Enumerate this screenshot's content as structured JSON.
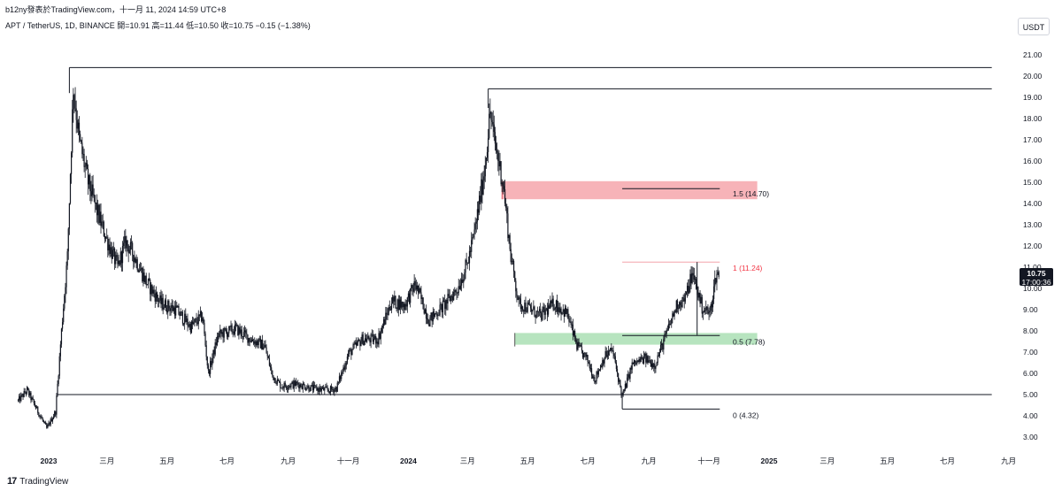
{
  "header": {
    "publisher": "b12ny發表於TradingView.com，十一月 11, 2024 14:59 UTC+8",
    "symbol_line": "APT / TetherUS, 1D, BINANCE  開=10.91  高=11.44  低=10.50  收=10.75  −0.15 (−1.38%)"
  },
  "currency_button": "USDT",
  "footer": {
    "brand_icon": "17",
    "brand": "TradingView"
  },
  "last_price": {
    "value": "10.75",
    "countdown": "17:00:36"
  },
  "colors": {
    "candle": "#131722",
    "red_zone": "#f7b3b8",
    "green_zone": "#b7e4bf",
    "fib_red": "#f23645",
    "line": "#131722"
  },
  "chart_data": {
    "type": "candlestick",
    "ylim": [
      2.6,
      22.0
    ],
    "y_ticks": [
      "3.00",
      "4.00",
      "5.00",
      "6.00",
      "7.00",
      "8.00",
      "9.00",
      "10.00",
      "11.00",
      "12.00",
      "13.00",
      "14.00",
      "15.00",
      "16.00",
      "17.00",
      "18.00",
      "19.00",
      "20.00",
      "21.00"
    ],
    "x_ticks": [
      {
        "label": "2023",
        "date": "2023-01-01",
        "bold": true
      },
      {
        "label": "三月",
        "date": "2023-03-01"
      },
      {
        "label": "五月",
        "date": "2023-05-01"
      },
      {
        "label": "七月",
        "date": "2023-07-01"
      },
      {
        "label": "九月",
        "date": "2023-09-01"
      },
      {
        "label": "十一月",
        "date": "2023-11-01"
      },
      {
        "label": "2024",
        "date": "2024-01-01",
        "bold": true
      },
      {
        "label": "三月",
        "date": "2024-03-01"
      },
      {
        "label": "五月",
        "date": "2024-05-01"
      },
      {
        "label": "七月",
        "date": "2024-07-01"
      },
      {
        "label": "九月",
        "date": "2024-09-01"
      },
      {
        "label": "十一月",
        "date": "2024-11-01"
      },
      {
        "label": "2025",
        "date": "2025-01-01",
        "bold": true
      },
      {
        "label": "三月",
        "date": "2025-03-01"
      },
      {
        "label": "五月",
        "date": "2025-05-01"
      },
      {
        "label": "七月",
        "date": "2025-07-01"
      },
      {
        "label": "九月",
        "date": "2025-09-01"
      }
    ],
    "path_keypoints": [
      [
        "2022-12-01",
        4.7
      ],
      [
        "2022-12-10",
        5.2
      ],
      [
        "2022-12-20",
        4.3
      ],
      [
        "2022-12-30",
        3.4
      ],
      [
        "2023-01-08",
        4.2
      ],
      [
        "2023-01-14",
        8.0
      ],
      [
        "2023-01-20",
        11.5
      ],
      [
        "2023-01-26",
        19.5
      ],
      [
        "2023-02-01",
        17.0
      ],
      [
        "2023-02-10",
        15.0
      ],
      [
        "2023-02-20",
        13.5
      ],
      [
        "2023-03-01",
        12.3
      ],
      [
        "2023-03-12",
        11.0
      ],
      [
        "2023-03-20",
        12.2
      ],
      [
        "2023-03-28",
        11.6
      ],
      [
        "2023-04-10",
        10.3
      ],
      [
        "2023-04-25",
        9.3
      ],
      [
        "2023-05-10",
        9.0
      ],
      [
        "2023-05-25",
        8.2
      ],
      [
        "2023-06-06",
        8.7
      ],
      [
        "2023-06-12",
        6.0
      ],
      [
        "2023-06-22",
        7.8
      ],
      [
        "2023-07-10",
        8.1
      ],
      [
        "2023-07-25",
        7.6
      ],
      [
        "2023-08-08",
        7.3
      ],
      [
        "2023-08-16",
        5.9
      ],
      [
        "2023-08-25",
        5.4
      ],
      [
        "2023-09-10",
        5.5
      ],
      [
        "2023-09-25",
        5.3
      ],
      [
        "2023-10-12",
        5.2
      ],
      [
        "2023-10-20",
        5.3
      ],
      [
        "2023-11-01",
        6.9
      ],
      [
        "2023-11-15",
        7.6
      ],
      [
        "2023-12-01",
        7.6
      ],
      [
        "2023-12-15",
        9.4
      ],
      [
        "2023-12-28",
        9.2
      ],
      [
        "2024-01-08",
        10.2
      ],
      [
        "2024-01-22",
        8.5
      ],
      [
        "2024-02-06",
        9.2
      ],
      [
        "2024-02-20",
        10.0
      ],
      [
        "2024-03-01",
        11.2
      ],
      [
        "2024-03-08",
        12.6
      ],
      [
        "2024-03-18",
        15.5
      ],
      [
        "2024-03-24",
        18.3
      ],
      [
        "2024-03-28",
        17.0
      ],
      [
        "2024-04-06",
        15.0
      ],
      [
        "2024-04-14",
        11.5
      ],
      [
        "2024-04-22",
        9.3
      ],
      [
        "2024-05-01",
        9.1
      ],
      [
        "2024-05-14",
        8.7
      ],
      [
        "2024-05-28",
        9.3
      ],
      [
        "2024-06-10",
        8.8
      ],
      [
        "2024-06-20",
        7.3
      ],
      [
        "2024-07-01",
        6.6
      ],
      [
        "2024-07-08",
        5.7
      ],
      [
        "2024-07-18",
        6.8
      ],
      [
        "2024-07-26",
        7.1
      ],
      [
        "2024-08-05",
        4.9
      ],
      [
        "2024-08-15",
        6.4
      ],
      [
        "2024-08-28",
        6.7
      ],
      [
        "2024-09-07",
        6.4
      ],
      [
        "2024-09-16",
        7.5
      ],
      [
        "2024-09-30",
        9.3
      ],
      [
        "2024-10-08",
        9.5
      ],
      [
        "2024-10-14",
        10.6
      ],
      [
        "2024-10-18",
        10.3
      ],
      [
        "2024-10-25",
        9.1
      ],
      [
        "2024-11-02",
        8.8
      ],
      [
        "2024-11-08",
        10.6
      ],
      [
        "2024-11-11",
        10.75
      ]
    ],
    "annotations": {
      "top_lines": [
        {
          "start": "2023-01-22",
          "end": "2025-08-15",
          "price": 20.4
        },
        {
          "start": "2024-03-22",
          "end": "2025-08-15",
          "price": 19.4
        }
      ],
      "support_line": {
        "start": "2023-01-10",
        "end": "2025-08-15",
        "price": 5.0
      },
      "supply_zone": {
        "start": "2024-04-05",
        "end": "2024-12-20",
        "low": 14.2,
        "high": 15.05
      },
      "demand_zone": {
        "start": "2024-04-18",
        "end": "2024-12-20",
        "low": 7.35,
        "high": 7.9
      },
      "fib": {
        "start": "2024-08-05",
        "end": "2024-11-12",
        "levels": [
          {
            "ratio": "1.5",
            "price": 14.7,
            "label": "1.5 (14.70)",
            "color": "#131722"
          },
          {
            "ratio": "1",
            "price": 11.24,
            "label": "1 (11.24)",
            "color": "#f23645"
          },
          {
            "ratio": "0.5",
            "price": 7.78,
            "label": "0.5 (7.78)",
            "color": "#131722"
          },
          {
            "ratio": "0",
            "price": 4.32,
            "label": "0 (4.32)",
            "color": "#131722"
          }
        ]
      }
    }
  }
}
